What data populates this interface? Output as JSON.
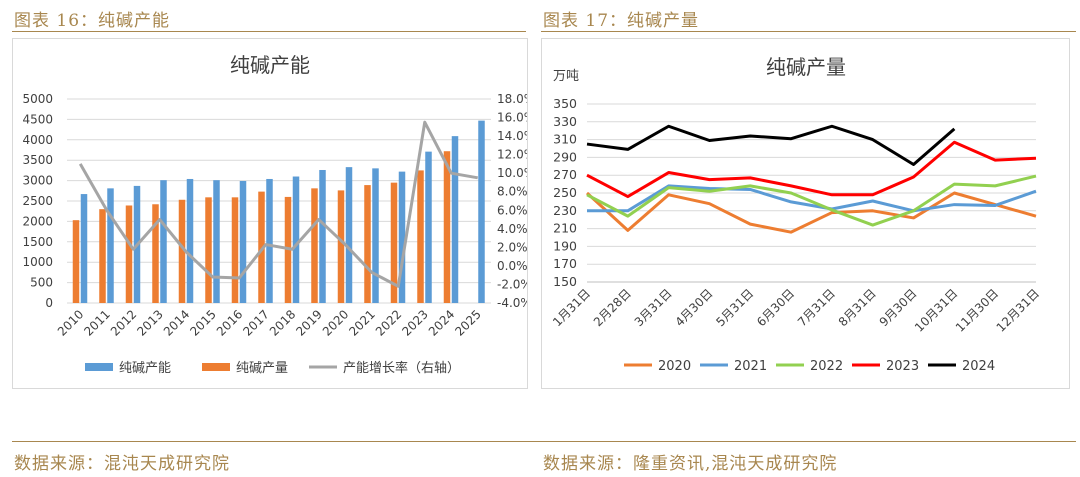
{
  "figures": {
    "left_caption": "图表 16：纯碱产能",
    "right_caption": "图表 17：纯碱产量",
    "left_source": "数据来源：混沌天成研究院",
    "right_source": "数据来源：隆重资讯,混沌天成研究院"
  },
  "chart_data": [
    {
      "type": "bar",
      "title": "纯碱产能",
      "categories": [
        "2010",
        "2011",
        "2012",
        "2013",
        "2014",
        "2015",
        "2016",
        "2017",
        "2018",
        "2019",
        "2020",
        "2021",
        "2022",
        "2023",
        "2024",
        "2025"
      ],
      "series": [
        {
          "name": "纯碱产能",
          "kind": "bar",
          "axis": "left",
          "color": "#5b9bd5",
          "values": [
            2670,
            2810,
            2870,
            3010,
            3040,
            3010,
            2990,
            3040,
            3100,
            3260,
            3330,
            3300,
            3220,
            3710,
            4090,
            4470
          ]
        },
        {
          "name": "纯碱产量",
          "kind": "bar",
          "axis": "left",
          "color": "#ed7d31",
          "values": [
            2030,
            2300,
            2390,
            2420,
            2530,
            2590,
            2590,
            2730,
            2600,
            2810,
            2760,
            2890,
            2950,
            3250,
            3720,
            null
          ]
        },
        {
          "name": "产能增长率（右轴）",
          "kind": "line",
          "axis": "right",
          "color": "#a5a5a5",
          "values": [
            11.0,
            6.0,
            1.8,
            5.0,
            1.5,
            -1.2,
            -1.3,
            2.3,
            1.8,
            5.0,
            2.3,
            -0.7,
            -2.2,
            15.5,
            10.0,
            9.5
          ]
        }
      ],
      "ylim_left": [
        0,
        5000
      ],
      "yticks_left": [
        "0",
        "500",
        "1000",
        "1500",
        "2000",
        "2500",
        "3000",
        "3500",
        "4000",
        "4500",
        "5000"
      ],
      "ylim_right": [
        -4,
        18
      ],
      "yticks_right": [
        "-4.0%",
        "-2.0%",
        "0.0%",
        "2.0%",
        "4.0%",
        "6.0%",
        "8.0%",
        "10.0%",
        "12.0%",
        "14.0%",
        "16.0%",
        "18.0%"
      ],
      "legend_position": "bottom"
    },
    {
      "type": "line",
      "title": "纯碱产量",
      "ylabel": "万吨",
      "categories": [
        "1月31日",
        "2月28日",
        "3月31日",
        "4月30日",
        "5月31日",
        "6月30日",
        "7月31日",
        "8月31日",
        "9月30日",
        "10月31日",
        "11月30日",
        "12月31日"
      ],
      "series": [
        {
          "name": "2020",
          "color": "#ed7d31",
          "values": [
            250,
            208,
            248,
            238,
            215,
            206,
            228,
            230,
            222,
            250,
            237,
            224
          ]
        },
        {
          "name": "2021",
          "color": "#5b9bd5",
          "values": [
            230,
            230,
            258,
            255,
            254,
            240,
            232,
            241,
            230,
            237,
            236,
            252
          ]
        },
        {
          "name": "2022",
          "color": "#92d050",
          "values": [
            248,
            224,
            256,
            252,
            258,
            250,
            231,
            214,
            230,
            260,
            258,
            269
          ]
        },
        {
          "name": "2023",
          "color": "#ff0000",
          "values": [
            270,
            246,
            273,
            265,
            267,
            258,
            248,
            248,
            268,
            307,
            287,
            289
          ]
        },
        {
          "name": "2024",
          "color": "#000000",
          "values": [
            305,
            299,
            325,
            309,
            314,
            311,
            325,
            310,
            282,
            322,
            null,
            null
          ]
        }
      ],
      "ylim": [
        150,
        350
      ],
      "yticks": [
        "150",
        "170",
        "190",
        "210",
        "230",
        "250",
        "270",
        "290",
        "310",
        "330",
        "350"
      ],
      "legend_position": "bottom"
    }
  ]
}
